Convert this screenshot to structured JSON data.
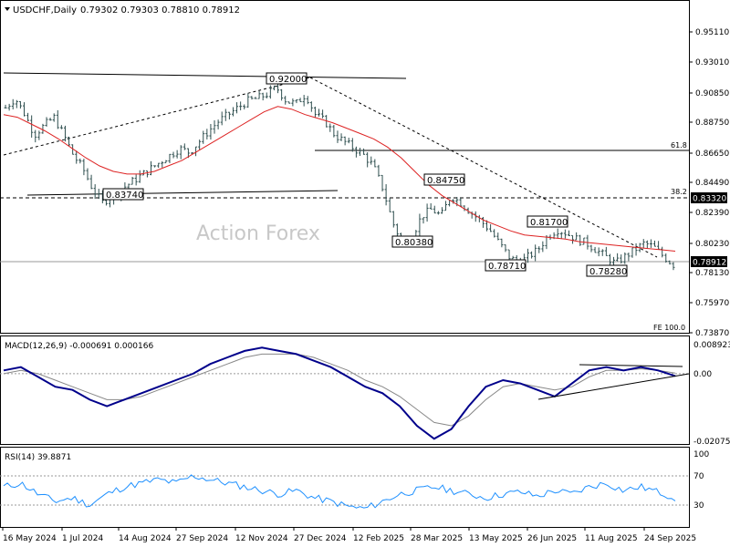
{
  "header": {
    "symbol": "USDCHF,Daily",
    "ohlc": "0.79302 0.79303 0.78810 0.78912",
    "macd_label": "MACD(12,26,9) -0.000691 0.000166",
    "rsi_label": "RSI(14) 39.8871",
    "watermark": "Action Forex"
  },
  "chart_data": [
    {
      "type": "candlestick",
      "panel": "price",
      "y_ticks": [
        "0.95110",
        "0.93010",
        "0.90850",
        "0.88750",
        "0.86650",
        "0.84490",
        "0.82390",
        "0.80230",
        "0.78130",
        "0.75970",
        "0.73870"
      ],
      "ylim": [
        0.7387,
        0.9611
      ],
      "x_tick_labels": [
        "16 May 2024",
        "1 Jul 2024",
        "14 Aug 2024",
        "27 Sep 2024",
        "12 Nov 2024",
        "27 Dec 2024",
        "12 Feb 2025",
        "28 Mar 2025",
        "13 May 2025",
        "26 Jun 2025",
        "11 Aug 2025",
        "24 Sep 2025"
      ],
      "current_price": "0.78912",
      "level_highlight": "0.83320",
      "annotations": [
        "0.92000",
        "0.83740",
        "0.84750",
        "0.80380",
        "0.81700",
        "0.78710",
        "0.78280"
      ],
      "fib_labels": [
        "61.8",
        "38.2",
        "FE 100.0"
      ],
      "close_series": [
        0.905,
        0.912,
        0.9,
        0.885,
        0.892,
        0.898,
        0.885,
        0.87,
        0.86,
        0.845,
        0.835,
        0.84,
        0.845,
        0.85,
        0.855,
        0.86,
        0.865,
        0.87,
        0.875,
        0.872,
        0.88,
        0.888,
        0.895,
        0.9,
        0.905,
        0.91,
        0.912,
        0.915,
        0.92,
        0.91,
        0.908,
        0.915,
        0.9,
        0.895,
        0.885,
        0.88,
        0.875,
        0.87,
        0.862,
        0.845,
        0.82,
        0.805,
        0.81,
        0.825,
        0.83,
        0.825,
        0.84,
        0.835,
        0.828,
        0.822,
        0.815,
        0.805,
        0.795,
        0.79,
        0.795,
        0.8,
        0.81,
        0.815,
        0.812,
        0.808,
        0.805,
        0.8,
        0.795,
        0.79,
        0.795,
        0.8,
        0.805,
        0.802,
        0.795,
        0.789
      ],
      "ma_series": [
        0.9,
        0.898,
        0.893,
        0.888,
        0.882,
        0.875,
        0.868,
        0.862,
        0.858,
        0.856,
        0.856,
        0.858,
        0.862,
        0.866,
        0.872,
        0.878,
        0.884,
        0.89,
        0.896,
        0.902,
        0.906,
        0.904,
        0.9,
        0.897,
        0.894,
        0.89,
        0.886,
        0.882,
        0.876,
        0.868,
        0.858,
        0.848,
        0.84,
        0.834,
        0.828,
        0.822,
        0.818,
        0.814,
        0.811,
        0.81,
        0.809,
        0.808,
        0.806,
        0.805,
        0.804,
        0.803,
        0.802,
        0.801,
        0.8,
        0.799
      ]
    },
    {
      "type": "line",
      "panel": "macd",
      "y_ticks": [
        "0.008923",
        "0.00",
        "-0.020759"
      ],
      "ylim": [
        -0.020759,
        0.008923
      ],
      "macd_series": [
        0.001,
        0.002,
        -0.001,
        -0.004,
        -0.005,
        -0.008,
        -0.01,
        -0.008,
        -0.006,
        -0.004,
        -0.002,
        0.0,
        0.003,
        0.005,
        0.007,
        0.008,
        0.007,
        0.006,
        0.004,
        0.002,
        -0.001,
        -0.004,
        -0.006,
        -0.01,
        -0.016,
        -0.02,
        -0.017,
        -0.01,
        -0.004,
        -0.002,
        -0.003,
        -0.005,
        -0.007,
        -0.003,
        0.001,
        0.002,
        0.001,
        0.002,
        0.001,
        -0.0007
      ],
      "signal_series": [
        0.0,
        0.001,
        0.0,
        -0.002,
        -0.004,
        -0.006,
        -0.008,
        -0.008,
        -0.007,
        -0.005,
        -0.003,
        -0.001,
        0.001,
        0.003,
        0.005,
        0.006,
        0.006,
        0.006,
        0.005,
        0.003,
        0.001,
        -0.002,
        -0.004,
        -0.007,
        -0.011,
        -0.015,
        -0.016,
        -0.013,
        -0.008,
        -0.004,
        -0.003,
        -0.004,
        -0.005,
        -0.004,
        -0.001,
        0.001,
        0.001,
        0.0015,
        0.001,
        0.0002
      ]
    },
    {
      "type": "line",
      "panel": "rsi",
      "y_ticks": [
        "100",
        "70",
        "30",
        "0"
      ],
      "ylim": [
        0,
        100
      ],
      "rsi_series": [
        55,
        60,
        45,
        35,
        40,
        30,
        45,
        55,
        60,
        65,
        60,
        70,
        65,
        60,
        55,
        50,
        45,
        50,
        40,
        35,
        28,
        25,
        35,
        45,
        50,
        55,
        50,
        45,
        40,
        45,
        48,
        42,
        50,
        45,
        55,
        60,
        50,
        55,
        48,
        39.9
      ]
    }
  ]
}
